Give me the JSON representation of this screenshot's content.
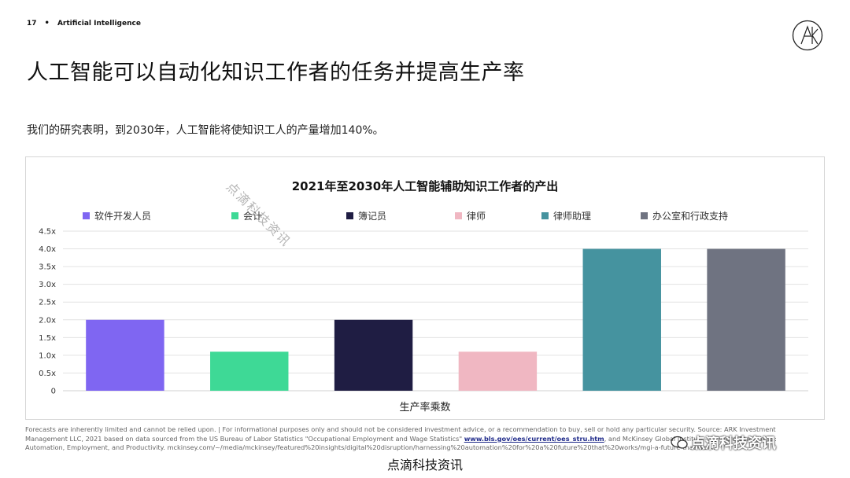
{
  "header": {
    "page_number": "17",
    "separator": "•",
    "section": "Artificial Intelligence"
  },
  "title": "人工智能可以自动化知识工作者的任务并提高生产率",
  "subtitle": "我们的研究表明，到2030年，人工智能将使知识工人的产量增加140%。",
  "chart_data": {
    "type": "bar",
    "title": "2021年至2030年人工智能辅助知识工作者的产出",
    "xlabel": "生产率乘数",
    "ylabel": "",
    "ylim": [
      0,
      4.5
    ],
    "yticks": [
      "0",
      "0.5x",
      "1.0x",
      "1.5x",
      "2.0x",
      "2.5x",
      "3.0x",
      "3.5x",
      "4.0x",
      "4.5x"
    ],
    "grid": true,
    "legend_position": "top",
    "categories": [
      "软件开发人员",
      "会计",
      "簿记员",
      "律师",
      "律师助理",
      "办公室和行政支持"
    ],
    "values": [
      2.0,
      1.1,
      2.0,
      1.1,
      4.0,
      4.0
    ],
    "colors": [
      "#7f66f2",
      "#3ed996",
      "#1f1d43",
      "#f0b7c2",
      "#45939f",
      "#6f7381"
    ]
  },
  "watermark": {
    "diagonal": "点滴科技资讯",
    "corner": "点滴科技资讯",
    "bottom": "点滴科技资讯"
  },
  "footnote": {
    "part1": "Forecasts are inherently limited and cannot be relied upon. | For informational purposes only and should not be considered investment advice, or a recommendation to buy, sell or hold any particular security. Source: ARK Investment Management LLC, 2021 based on data sourced from the US Bureau of Labor Statistics \"Occupational Employment and Wage Statistics\"",
    "link": "www.bls.gov/oes/current/oes_stru.htm",
    "part2": ", and McKinsey Global Institute \"A Future That Works: Automation, Employment, and Productivity. mckinsey.com/~/media/mckinsey/featured%20insights/digital%20disruption/harnessing%20automation%20for%20a%20future%20that%20works/mgi-a-future-that-works"
  }
}
